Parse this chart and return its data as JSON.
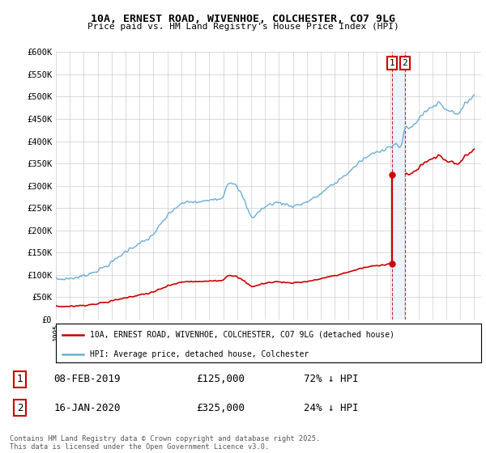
{
  "title": "10A, ERNEST ROAD, WIVENHOE, COLCHESTER, CO7 9LG",
  "subtitle": "Price paid vs. HM Land Registry's House Price Index (HPI)",
  "ylabel_ticks": [
    "£0",
    "£50K",
    "£100K",
    "£150K",
    "£200K",
    "£250K",
    "£300K",
    "£350K",
    "£400K",
    "£450K",
    "£500K",
    "£550K",
    "£600K"
  ],
  "ytick_values": [
    0,
    50000,
    100000,
    150000,
    200000,
    250000,
    300000,
    350000,
    400000,
    450000,
    500000,
    550000,
    600000
  ],
  "hpi_color": "#6baed6",
  "price_color": "#cc0000",
  "t1_year_float": 2019.096,
  "t1_price": 125000,
  "t2_year_float": 2020.038,
  "t2_price": 325000,
  "transaction1_date": "08-FEB-2019",
  "transaction1_pct": "72% ↓ HPI",
  "transaction2_date": "16-JAN-2020",
  "transaction2_pct": "24% ↓ HPI",
  "legend1": "10A, ERNEST ROAD, WIVENHOE, COLCHESTER, CO7 9LG (detached house)",
  "legend2": "HPI: Average price, detached house, Colchester",
  "footnote": "Contains HM Land Registry data © Crown copyright and database right 2025.\nThis data is licensed under the Open Government Licence v3.0.",
  "bg_color": "#ffffff",
  "grid_color": "#cccccc",
  "shade_color": "#ddeeff"
}
